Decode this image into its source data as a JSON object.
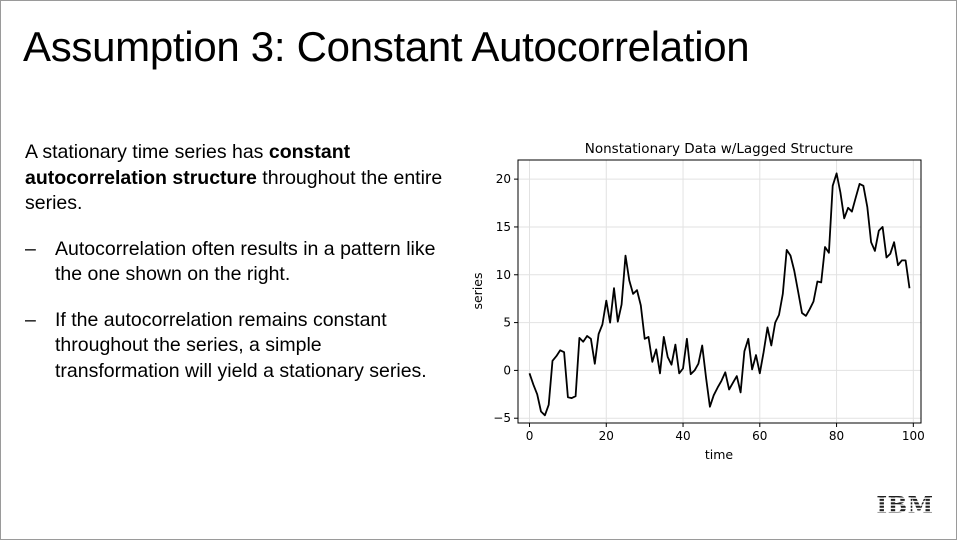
{
  "slide": {
    "title": "Assumption 3: Constant Autocorrelation",
    "intro": {
      "t1": "A stationary time series has ",
      "b1": "constant",
      "b2": "autocorrelation structure",
      "t2": " throughout the entire series."
    },
    "bullets": [
      {
        "dash": "–",
        "text": "Autocorrelation often results in a pattern like the one shown on the right."
      },
      {
        "dash": "–",
        "text": "If the autocorrelation remains constant throughout the series, a simple transformation will yield a stationary series."
      }
    ],
    "logo": {
      "text": "IBM",
      "color": "#1f1f1f"
    }
  },
  "chart_data": {
    "type": "line",
    "title": "Nonstationary Data w/Lagged Structure",
    "xlabel": "time",
    "ylabel": "series",
    "xlim": [
      -3,
      102
    ],
    "ylim": [
      -5.5,
      22
    ],
    "xticks": [
      0,
      20,
      40,
      60,
      80,
      100
    ],
    "yticks": [
      -5,
      0,
      5,
      10,
      15,
      20
    ],
    "ytick_labels": [
      "−5",
      "0",
      "5",
      "10",
      "15",
      "20"
    ],
    "grid": true,
    "line_color": "#000000",
    "series": [
      {
        "x": [
          0,
          1,
          2,
          3,
          4,
          5,
          6,
          7,
          8,
          9,
          10,
          11,
          12,
          13,
          14,
          15,
          16,
          17,
          18,
          19,
          20,
          21,
          22,
          23,
          24,
          25,
          26,
          27,
          28,
          29,
          30,
          31,
          32,
          33,
          34,
          35,
          36,
          37,
          38,
          39,
          40,
          41,
          42,
          43,
          44,
          45,
          46,
          47,
          48,
          49,
          50,
          51,
          52,
          53,
          54,
          55,
          56,
          57,
          58,
          59,
          60,
          61,
          62,
          63,
          64,
          65,
          66,
          67,
          68,
          69,
          70,
          71,
          72,
          73,
          74,
          75,
          76,
          77,
          78,
          79,
          80,
          81,
          82,
          83,
          84,
          85,
          86,
          87,
          88,
          89,
          90,
          91,
          92,
          93,
          94,
          95,
          96,
          97,
          98,
          99
        ],
        "y": [
          -0.3,
          -1.5,
          -2.5,
          -4.3,
          -4.7,
          -3.6,
          1.0,
          1.5,
          2.1,
          1.9,
          -2.8,
          -2.9,
          -2.7,
          3.4,
          3.0,
          3.6,
          3.3,
          0.7,
          3.8,
          4.8,
          7.3,
          5.0,
          8.6,
          5.1,
          6.9,
          12.0,
          9.4,
          8.0,
          8.4,
          6.8,
          3.3,
          3.5,
          0.9,
          2.2,
          -0.3,
          3.5,
          1.4,
          0.6,
          2.7,
          -0.3,
          0.2,
          3.3,
          -0.4,
          0.0,
          0.7,
          2.6,
          -0.8,
          -3.8,
          -2.6,
          -1.8,
          -1.1,
          -0.2,
          -2.0,
          -1.3,
          -0.6,
          -2.3,
          2.0,
          3.3,
          0.1,
          1.6,
          -0.3,
          1.9,
          4.5,
          2.6,
          5.0,
          5.8,
          8.0,
          12.6,
          12.0,
          10.4,
          8.2,
          6.0,
          5.7,
          6.4,
          7.2,
          9.3,
          9.2,
          12.9,
          12.3,
          19.3,
          20.6,
          18.6,
          15.9,
          17.0,
          16.6,
          18.1,
          19.5,
          19.3,
          17.1,
          13.4,
          12.5,
          14.6,
          15.0,
          11.8,
          12.2,
          13.4,
          11.0,
          11.5,
          11.5,
          8.6
        ]
      }
    ]
  }
}
